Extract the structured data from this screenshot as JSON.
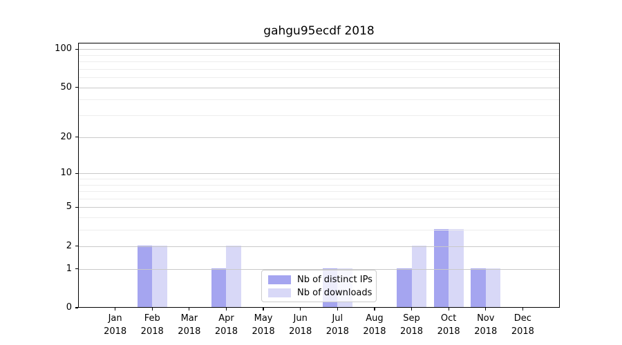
{
  "title": "gahgu95ecdf 2018",
  "chart_data": {
    "type": "bar",
    "title": "gahgu95ecdf 2018",
    "categories": [
      "Jan",
      "Feb",
      "Mar",
      "Apr",
      "May",
      "Jun",
      "Jul",
      "Aug",
      "Sep",
      "Oct",
      "Nov",
      "Dec"
    ],
    "year": "2018",
    "series": [
      {
        "name": "Nb of distinct IPs",
        "color": "#a5a5f0",
        "values": [
          0,
          2,
          0,
          1,
          0,
          0,
          1,
          0,
          1,
          3,
          1,
          0
        ]
      },
      {
        "name": "Nb of downloads",
        "color": "#d8d8f7",
        "values": [
          0,
          2,
          0,
          2,
          0,
          0,
          1,
          0,
          2,
          3,
          1,
          0
        ]
      }
    ],
    "yticks": [
      0,
      1,
      2,
      5,
      10,
      20,
      50,
      100
    ],
    "major_gridlines": [
      1,
      2,
      5,
      10,
      20,
      50,
      100
    ],
    "minor_gridlines": [
      3,
      4,
      6,
      7,
      8,
      9,
      30,
      40,
      60,
      70,
      80,
      90
    ],
    "scale": "log10(1+v)",
    "ylim": [
      0,
      112
    ],
    "xlabel": "",
    "ylabel": "",
    "grid": true,
    "legend_position": "lower-center"
  }
}
